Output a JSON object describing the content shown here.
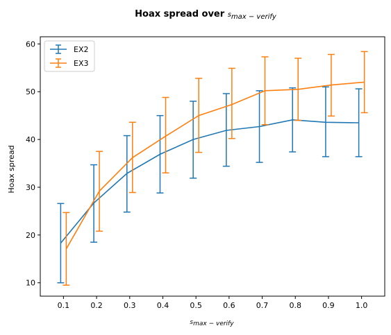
{
  "chart_data": {
    "type": "line",
    "title": "Hoax spread over",
    "title_math": "s",
    "title_math_sub": "max − verify",
    "xlabel_math": "s",
    "xlabel_math_sub": "max − verify",
    "ylabel": "Hoax spread",
    "x": [
      0.1,
      0.2,
      0.3,
      0.4,
      0.5,
      0.6,
      0.7,
      0.8,
      0.9,
      1.0
    ],
    "x_tick_labels": [
      "0.1",
      "0.2",
      "0.3",
      "0.4",
      "0.5",
      "0.6",
      "0.7",
      "0.8",
      "0.9",
      "1.0"
    ],
    "y_ticks": [
      10,
      20,
      30,
      40,
      50,
      60
    ],
    "y_tick_labels": [
      "10",
      "20",
      "30",
      "40",
      "50",
      "60"
    ],
    "xlim": [
      0.03,
      1.07
    ],
    "ylim": [
      7.2,
      61.5
    ],
    "grid": false,
    "legend_position": "top-left",
    "series": [
      {
        "name": "EX2",
        "color": "#1f77b4",
        "values": [
          18.3,
          26.7,
          32.9,
          36.9,
          40.0,
          41.9,
          42.7,
          44.1,
          43.6,
          43.5
        ],
        "err_lower": [
          10.0,
          18.5,
          24.8,
          28.8,
          31.9,
          34.4,
          35.2,
          37.4,
          36.4,
          36.4
        ],
        "err_upper": [
          26.6,
          34.7,
          40.8,
          45.0,
          48.0,
          49.6,
          50.2,
          50.8,
          51.0,
          50.6
        ]
      },
      {
        "name": "EX3",
        "color": "#ff7f0e",
        "values": [
          17.1,
          29.2,
          36.2,
          40.7,
          45.0,
          47.3,
          50.2,
          50.5,
          51.4,
          52.0
        ],
        "err_lower": [
          9.5,
          20.8,
          28.9,
          33.0,
          37.3,
          40.2,
          43.1,
          44.0,
          44.9,
          45.6
        ],
        "err_upper": [
          24.7,
          37.5,
          43.6,
          48.8,
          52.8,
          54.9,
          57.3,
          57.0,
          57.8,
          58.4
        ]
      }
    ]
  }
}
